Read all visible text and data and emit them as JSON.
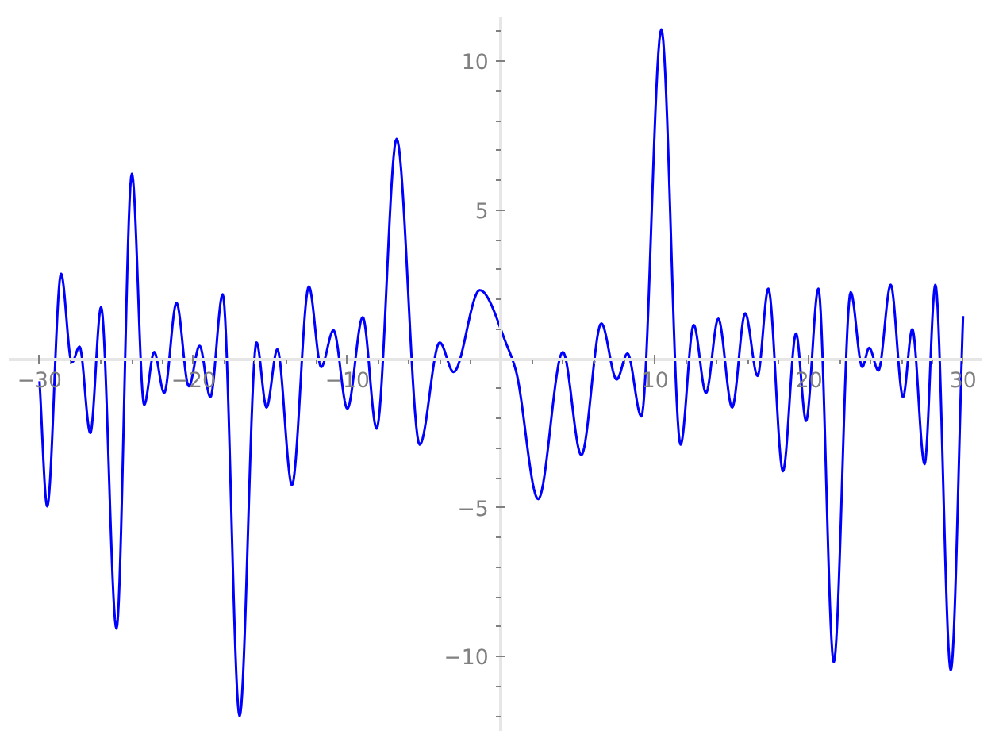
{
  "chart_data": {
    "type": "line",
    "xlim": [
      -32,
      31.2
    ],
    "ylim": [
      -12.5,
      11.5
    ],
    "grid": false,
    "line_style": "solid",
    "marker": "none",
    "xticks": [
      {
        "value": -30,
        "label": "−30"
      },
      {
        "value": -28,
        "label": null
      },
      {
        "value": -26,
        "label": null
      },
      {
        "value": -24,
        "label": null
      },
      {
        "value": -22,
        "label": null
      },
      {
        "value": -20,
        "label": "−20"
      },
      {
        "value": -18,
        "label": null
      },
      {
        "value": -16,
        "label": null
      },
      {
        "value": -14,
        "label": null
      },
      {
        "value": -12,
        "label": null
      },
      {
        "value": -10,
        "label": "−10"
      },
      {
        "value": -8,
        "label": null
      },
      {
        "value": -6,
        "label": null
      },
      {
        "value": -4,
        "label": null
      },
      {
        "value": -2,
        "label": null
      },
      {
        "value": 2,
        "label": null
      },
      {
        "value": 4,
        "label": null
      },
      {
        "value": 6,
        "label": null
      },
      {
        "value": 8,
        "label": null
      },
      {
        "value": 10,
        "label": "10"
      },
      {
        "value": 12,
        "label": null
      },
      {
        "value": 14,
        "label": null
      },
      {
        "value": 16,
        "label": null
      },
      {
        "value": 18,
        "label": null
      },
      {
        "value": 20,
        "label": "20"
      },
      {
        "value": 22,
        "label": null
      },
      {
        "value": 24,
        "label": null
      },
      {
        "value": 26,
        "label": null
      },
      {
        "value": 28,
        "label": null
      },
      {
        "value": 30,
        "label": "30"
      }
    ],
    "yticks": [
      {
        "value": -12,
        "label": null
      },
      {
        "value": -11,
        "label": null
      },
      {
        "value": -10,
        "label": "−10"
      },
      {
        "value": -9,
        "label": null
      },
      {
        "value": -8,
        "label": null
      },
      {
        "value": -7,
        "label": null
      },
      {
        "value": -6,
        "label": null
      },
      {
        "value": -5,
        "label": "−5"
      },
      {
        "value": -4,
        "label": null
      },
      {
        "value": -3,
        "label": null
      },
      {
        "value": -2,
        "label": null
      },
      {
        "value": -1,
        "label": null
      },
      {
        "value": 1,
        "label": null
      },
      {
        "value": 2,
        "label": null
      },
      {
        "value": 3,
        "label": null
      },
      {
        "value": 4,
        "label": null
      },
      {
        "value": 5,
        "label": "5"
      },
      {
        "value": 6,
        "label": null
      },
      {
        "value": 7,
        "label": null
      },
      {
        "value": 8,
        "label": null
      },
      {
        "value": 9,
        "label": null
      },
      {
        "value": 10,
        "label": "10"
      },
      {
        "value": 11,
        "label": null
      }
    ],
    "series": [
      {
        "color": "#0000ff",
        "x": [
          -30,
          -29.5,
          -28.6,
          -27.9,
          -27.4,
          -26.7,
          -26.0,
          -25.0,
          -24.0,
          -23.2,
          -22.55,
          -21.9,
          -21.1,
          -20.3,
          -19.6,
          -18.9,
          -18.1,
          -17.0,
          -15.9,
          -15.25,
          -14.55,
          -13.6,
          -12.5,
          -11.7,
          -10.9,
          -10.0,
          -9.0,
          -8.1,
          -6.8,
          -5.3,
          -4.0,
          -3.1,
          -1.4,
          0.4,
          0.95,
          2.4,
          4.0,
          5.2,
          6.5,
          7.5,
          8.2,
          9.1,
          10.4,
          11.65,
          12.5,
          13.3,
          14.1,
          15.0,
          15.85,
          16.65,
          17.35,
          18.3,
          19.15,
          19.8,
          20.6,
          21.6,
          22.7,
          23.45,
          23.9,
          24.5,
          25.3,
          26.1,
          26.7,
          27.5,
          28.2,
          29.2,
          30.0
        ],
        "values": [
          -0.75,
          -4.95,
          2.86,
          -0.12,
          0.41,
          -2.49,
          1.74,
          -9.06,
          6.22,
          -1.54,
          0.23,
          -1.14,
          1.88,
          -0.92,
          0.44,
          -1.28,
          2.17,
          -12.0,
          0.55,
          -1.63,
          0.32,
          -4.24,
          2.43,
          -0.27,
          0.96,
          -1.67,
          1.4,
          -2.34,
          7.39,
          -2.88,
          0.55,
          -0.44,
          2.31,
          0.41,
          -0.39,
          -4.71,
          0.23,
          -3.23,
          1.19,
          -0.69,
          0.18,
          -1.93,
          11.07,
          -2.88,
          1.14,
          -1.14,
          1.35,
          -1.63,
          1.53,
          -0.57,
          2.36,
          -3.77,
          0.85,
          -2.08,
          2.36,
          -10.19,
          2.24,
          -0.27,
          0.37,
          -0.39,
          2.49,
          -1.28,
          1.0,
          -3.53,
          2.49,
          -10.46,
          1.44
        ]
      }
    ]
  }
}
